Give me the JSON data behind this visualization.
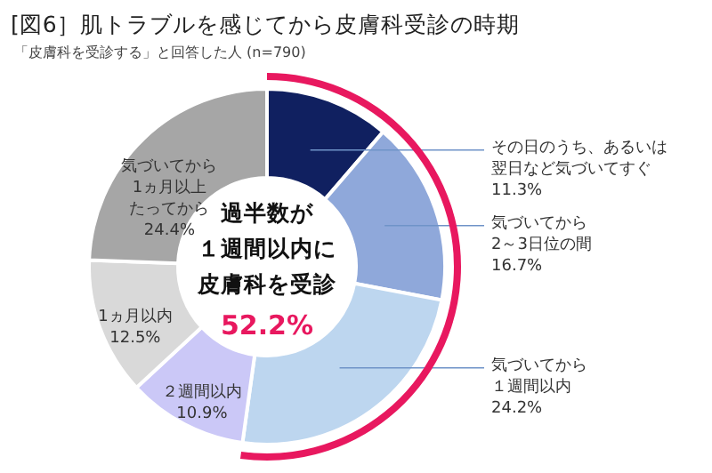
{
  "chart_data": {
    "type": "donut",
    "title": "[図6］肌トラブルを感じてから皮膚科受診の時期",
    "subtitle": "「皮膚科を受診する」と回答した人 (n=790)",
    "categories": [
      "その日のうち、あるいは翌日など気づいてすぐ",
      "気づいてから2～3日位の間",
      "気づいてから１週間以内",
      "２週間以内",
      "1ヵ月以内",
      "気づいてから1ヵ月以上たってから"
    ],
    "values": [
      11.3,
      16.7,
      24.2,
      10.9,
      12.5,
      24.4
    ],
    "value_labels": [
      "11.3%",
      "16.7%",
      "24.2%",
      "10.9%",
      "12.5%",
      "24.4%"
    ],
    "colors": [
      "#102060",
      "#8fa8da",
      "#bdd6ef",
      "#cbc8f7",
      "#d9d9d9",
      "#a6a6a6"
    ],
    "annotations": [
      "過半数が",
      "１週間以内に",
      "皮膚科を受診",
      "52.2%"
    ]
  }
}
